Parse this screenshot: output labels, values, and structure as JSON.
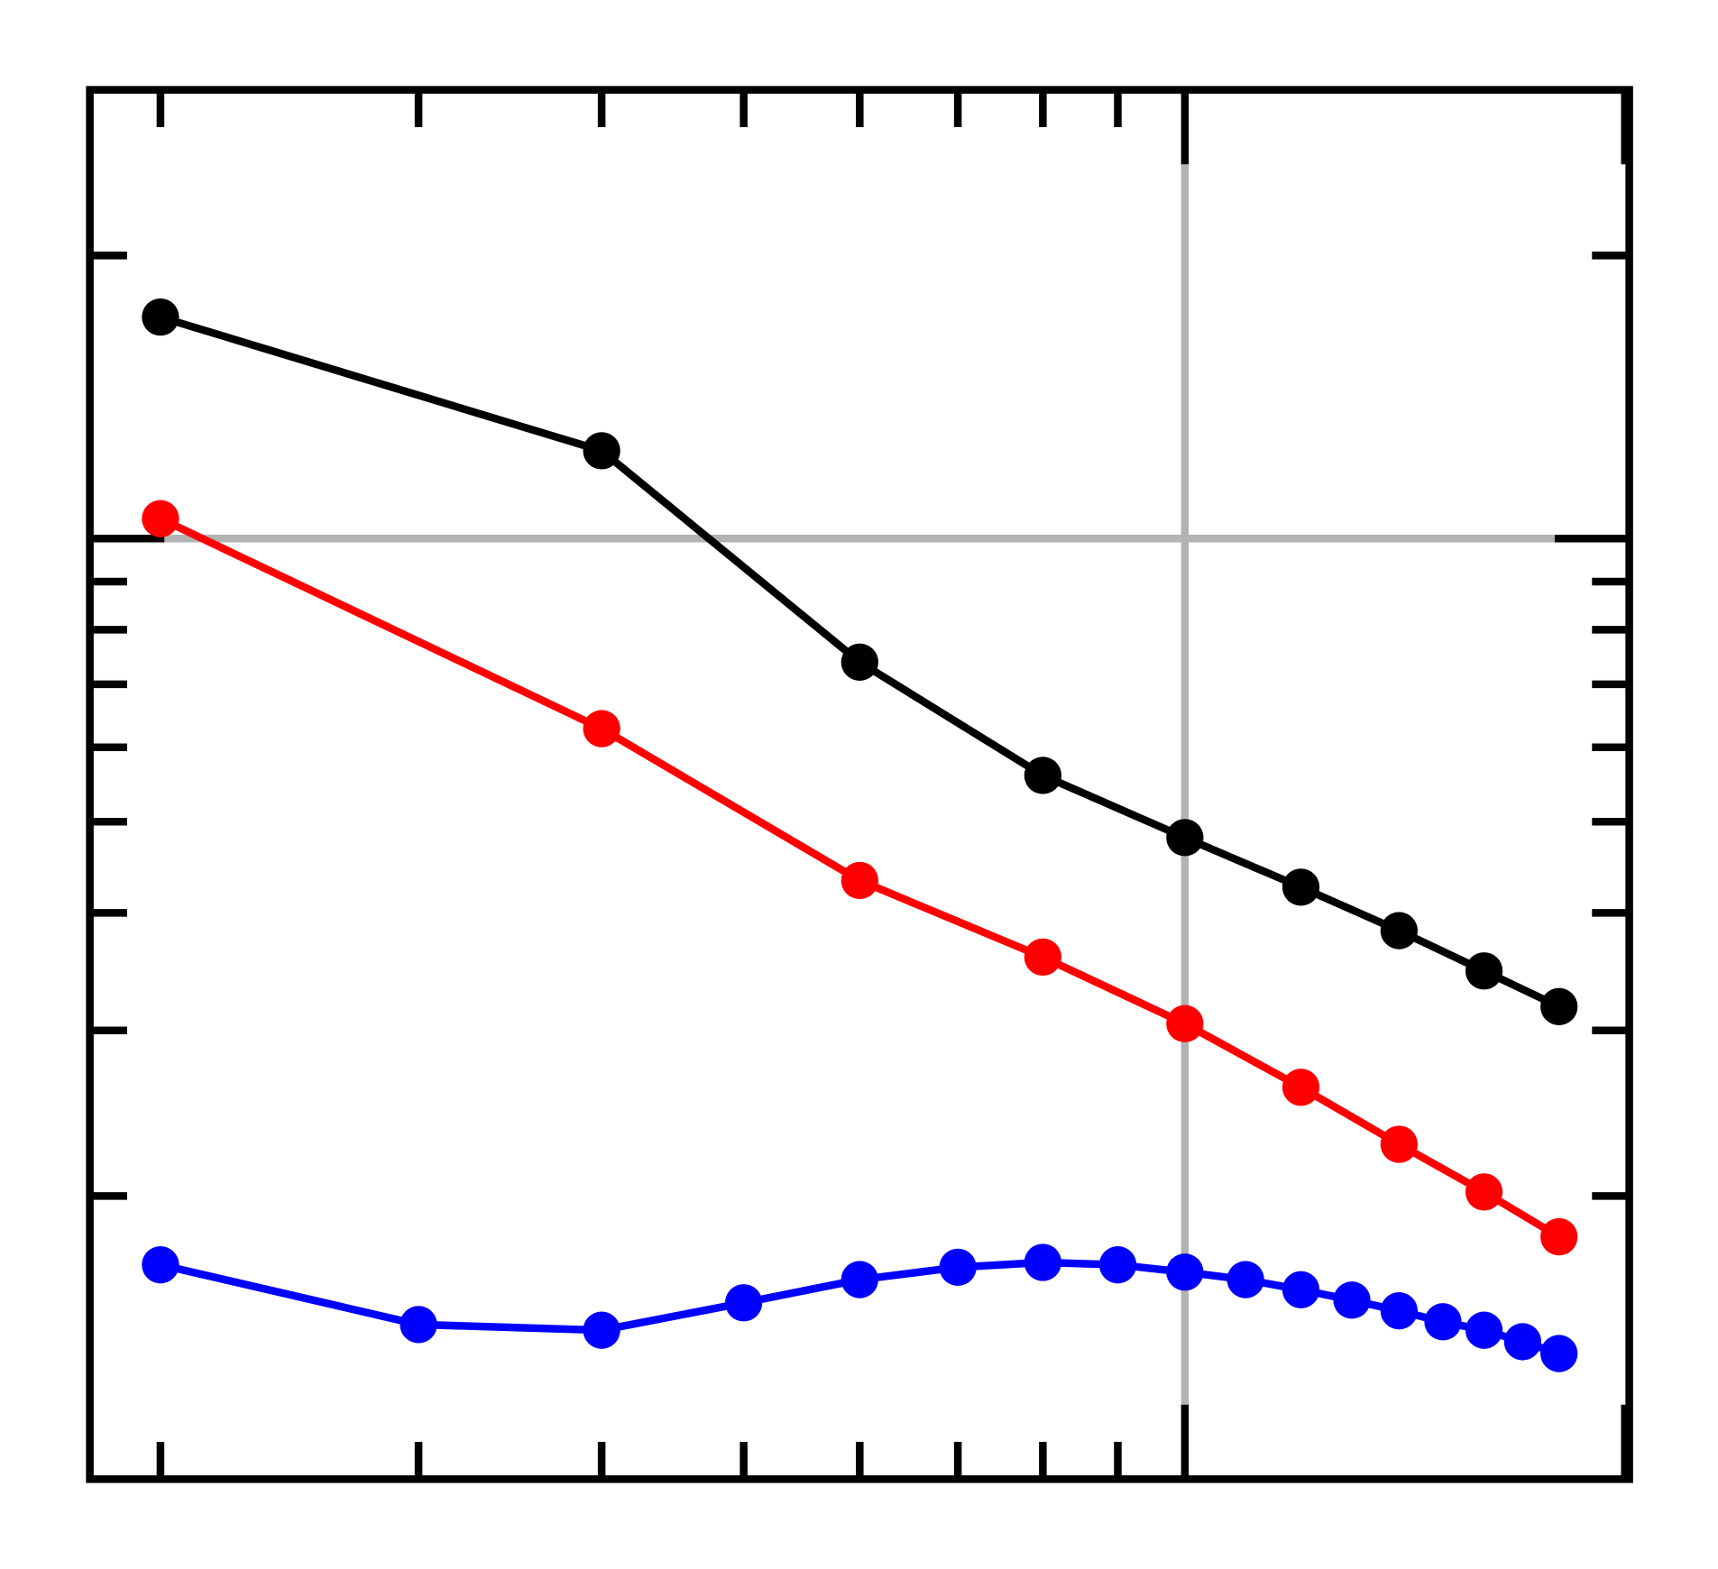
{
  "chart_data": {
    "type": "line",
    "title": "",
    "xlabel": "",
    "ylabel": "",
    "xscale": "log",
    "yscale": "log",
    "xlim": [
      1.79,
      20.1
    ],
    "ylim": [
      0.1,
      3.0
    ],
    "x_ticks_minor": [
      2,
      3,
      4,
      5,
      6,
      7,
      8,
      9
    ],
    "x_ticks_major": [
      10,
      20
    ],
    "y_ticks_minor": [
      0.2,
      0.3,
      0.4,
      0.5,
      0.6,
      0.7,
      0.8,
      0.9,
      2
    ],
    "y_ticks_major": [
      1
    ],
    "tick_labels_shown": false,
    "grid": {
      "x": [
        10
      ],
      "y": [
        1
      ],
      "color": "#b3b3b3"
    },
    "series": [
      {
        "color": "#000000",
        "x": [
          2,
          4,
          6,
          8,
          10,
          12,
          14,
          16,
          18
        ],
        "y": [
          1.72,
          1.24,
          0.739,
          0.56,
          0.481,
          0.426,
          0.383,
          0.347,
          0.318
        ]
      },
      {
        "color": "#ff0000",
        "x": [
          2,
          4,
          6,
          8,
          10,
          12,
          14,
          16,
          18
        ],
        "y": [
          1.05,
          0.628,
          0.433,
          0.359,
          0.305,
          0.261,
          0.227,
          0.202,
          0.181
        ]
      },
      {
        "color": "#0000ff",
        "x": [
          2,
          3,
          4,
          5,
          6,
          7,
          8,
          9,
          10,
          11,
          12,
          13,
          14,
          15,
          16,
          17,
          18
        ],
        "y": [
          0.169,
          0.146,
          0.144,
          0.154,
          0.163,
          0.168,
          0.17,
          0.169,
          0.166,
          0.163,
          0.159,
          0.155,
          0.151,
          0.147,
          0.144,
          0.14,
          0.136
        ]
      }
    ]
  }
}
